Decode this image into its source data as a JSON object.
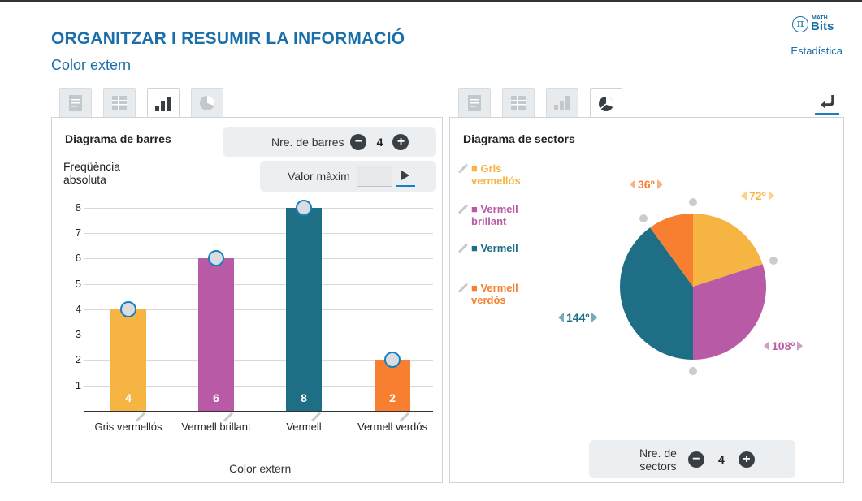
{
  "header": {
    "title": "ORGANITZAR I RESUMIR LA INFORMACIÓ",
    "subtitle": "Color extern",
    "brand": "Estadística",
    "logo_symbol": "π",
    "logo_top": "MATH",
    "logo_bottom": "Bits"
  },
  "tabs_left": [
    "text-icon",
    "table-icon",
    "bar-chart-icon",
    "pie-chart-icon"
  ],
  "tabs_right": [
    "text-icon",
    "table-icon",
    "bar-chart-icon",
    "pie-chart-icon"
  ],
  "bar_panel": {
    "title": "Diagrama de barres",
    "bars_label": "Nre. de barres",
    "bars_count": "4",
    "max_label": "Valor màxim",
    "ylabel_line1": "Freqüència",
    "ylabel_line2": "absoluta",
    "xlabel": "Color extern"
  },
  "pie_panel": {
    "title": "Diagrama de sectors",
    "sectors_label_line1": "Nre. de",
    "sectors_label_line2": "sectors",
    "sectors_count": "4"
  },
  "chart_data": [
    {
      "type": "bar",
      "categories": [
        "Gris vermellós",
        "Vermell brillant",
        "Vermell",
        "Vermell verdós"
      ],
      "values": [
        4,
        6,
        8,
        2
      ],
      "value_labels": [
        "4",
        "6",
        "8",
        "2"
      ],
      "colors": [
        "#f6b443",
        "#b85aa5",
        "#1e6f86",
        "#f77f2f"
      ],
      "xlabel": "Color extern",
      "ylabel": "Freqüència absoluta",
      "ylim": [
        0,
        8
      ],
      "yticks": [
        "1",
        "2",
        "3",
        "4",
        "5",
        "6",
        "7",
        "8"
      ],
      "grid": true
    },
    {
      "type": "pie",
      "labels": [
        "Gris vermellós",
        "Vermell brillant",
        "Vermell",
        "Vermell verdós"
      ],
      "legend": [
        "■ Gris vermellós",
        "■ Vermell brillant",
        "■ Vermell",
        "■ Vermell verdós"
      ],
      "values": [
        4,
        6,
        8,
        2
      ],
      "angles": [
        "72º",
        "108º",
        "144º",
        "36º"
      ],
      "colors": [
        "#f6b443",
        "#b85aa5",
        "#1e6f86",
        "#f77f2f"
      ],
      "legend_position": "left"
    }
  ]
}
